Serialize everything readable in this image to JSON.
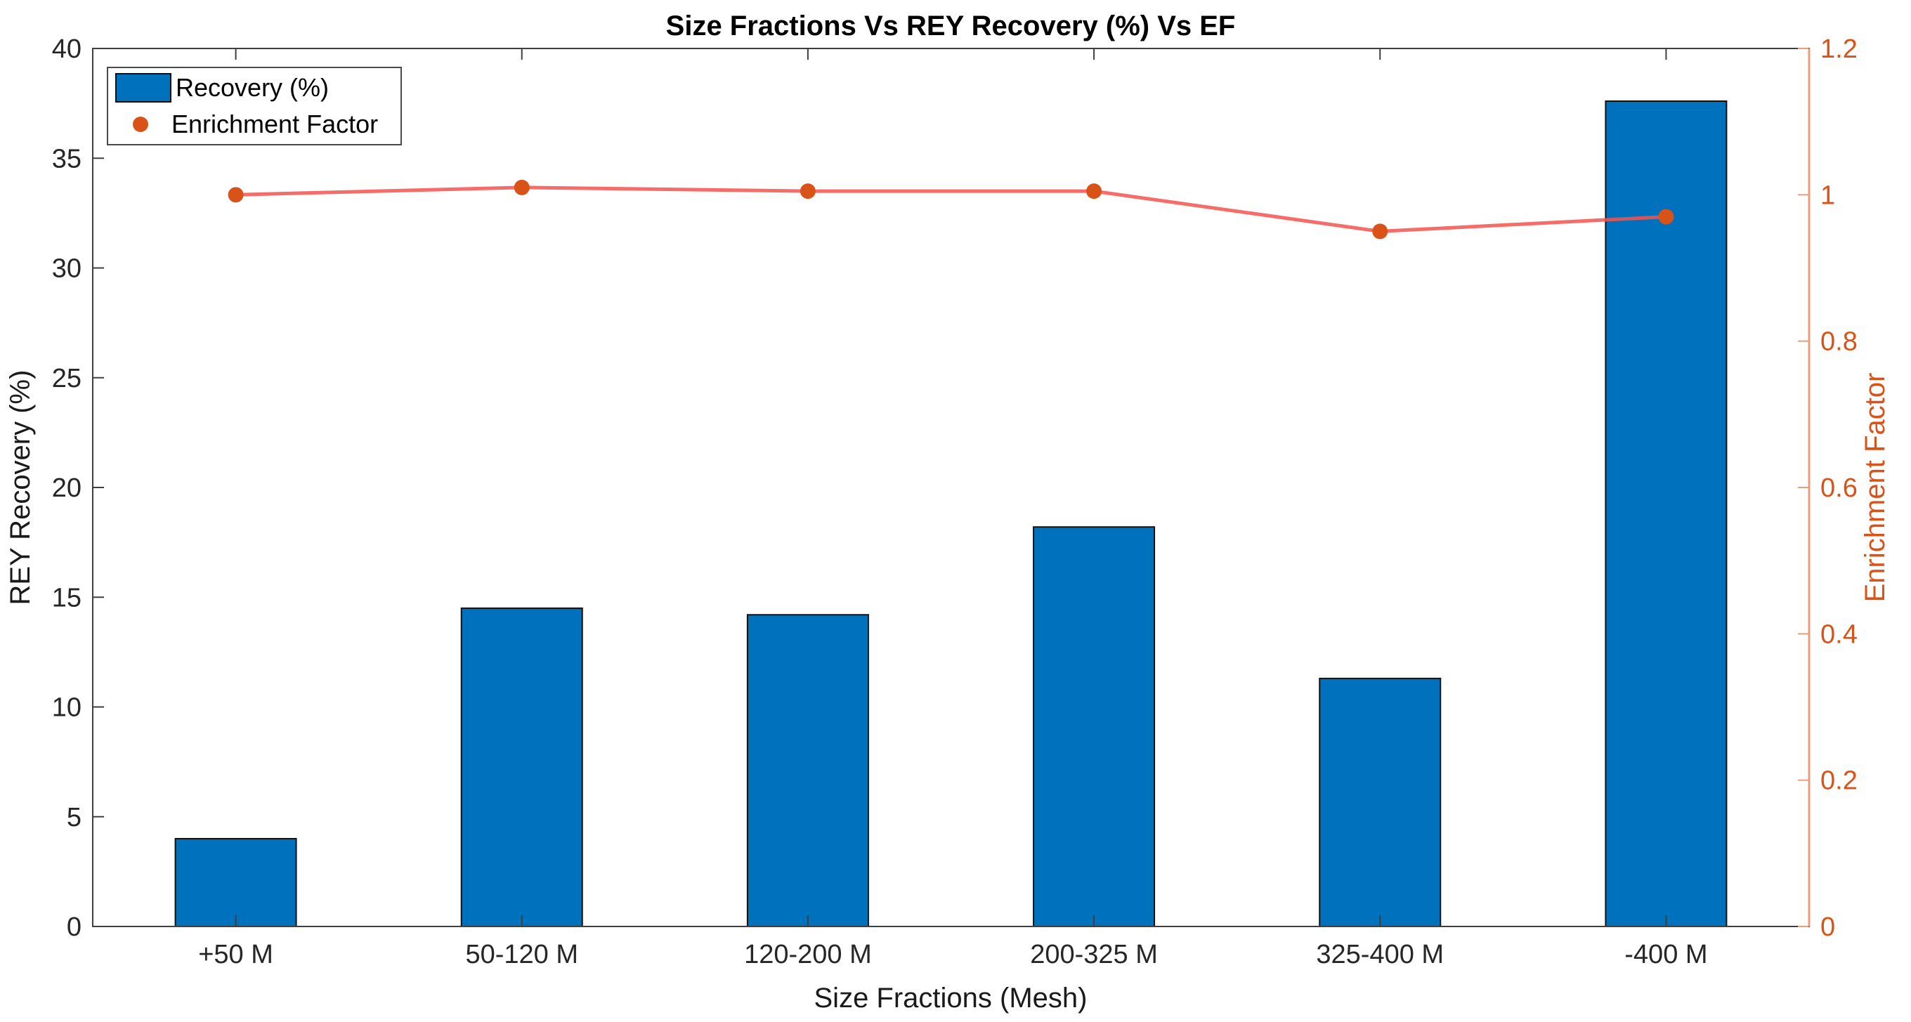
{
  "title": "Size Fractions Vs REY Recovery (%) Vs EF",
  "chart_data": {
    "type": "bar+line-dual-axis",
    "title": "Size Fractions Vs REY Recovery (%) Vs EF",
    "categories": [
      "+50 M",
      "50-120 M",
      "120-200 M",
      "200-325 M",
      "325-400 M",
      "-400 M"
    ],
    "series": [
      {
        "name": "Recovery (%)",
        "type": "bar",
        "axis": "left",
        "color": "#0072BD",
        "edge_color": "#111111",
        "values": [
          4.0,
          14.5,
          14.2,
          18.2,
          11.3,
          37.6
        ]
      },
      {
        "name": "Enrichment Factor",
        "type": "line+marker",
        "axis": "right",
        "marker_color": "#D95319",
        "line_color": "#F4524E",
        "values": [
          1.0,
          1.01,
          1.005,
          1.005,
          0.95,
          0.97
        ]
      }
    ],
    "xlabel": "Size Fractions (Mesh)",
    "left_axis": {
      "label": "REY Recovery (%)",
      "min": 0,
      "max": 40,
      "tick_labels": [
        "0",
        "5",
        "10",
        "15",
        "20",
        "25",
        "30",
        "35",
        "40"
      ],
      "color": "#262626"
    },
    "right_axis": {
      "label": "Enrichment Factor",
      "min": 0,
      "max": 1.2,
      "tick_labels": [
        "0",
        "0.2",
        "0.4",
        "0.6",
        "0.8",
        "1",
        "1.2"
      ],
      "color": "#D95319",
      "spine_color": "#EA9C7B"
    },
    "legend": {
      "position": "top-left",
      "entries": [
        "Recovery (%)",
        "Enrichment Factor"
      ]
    },
    "grid": false
  }
}
